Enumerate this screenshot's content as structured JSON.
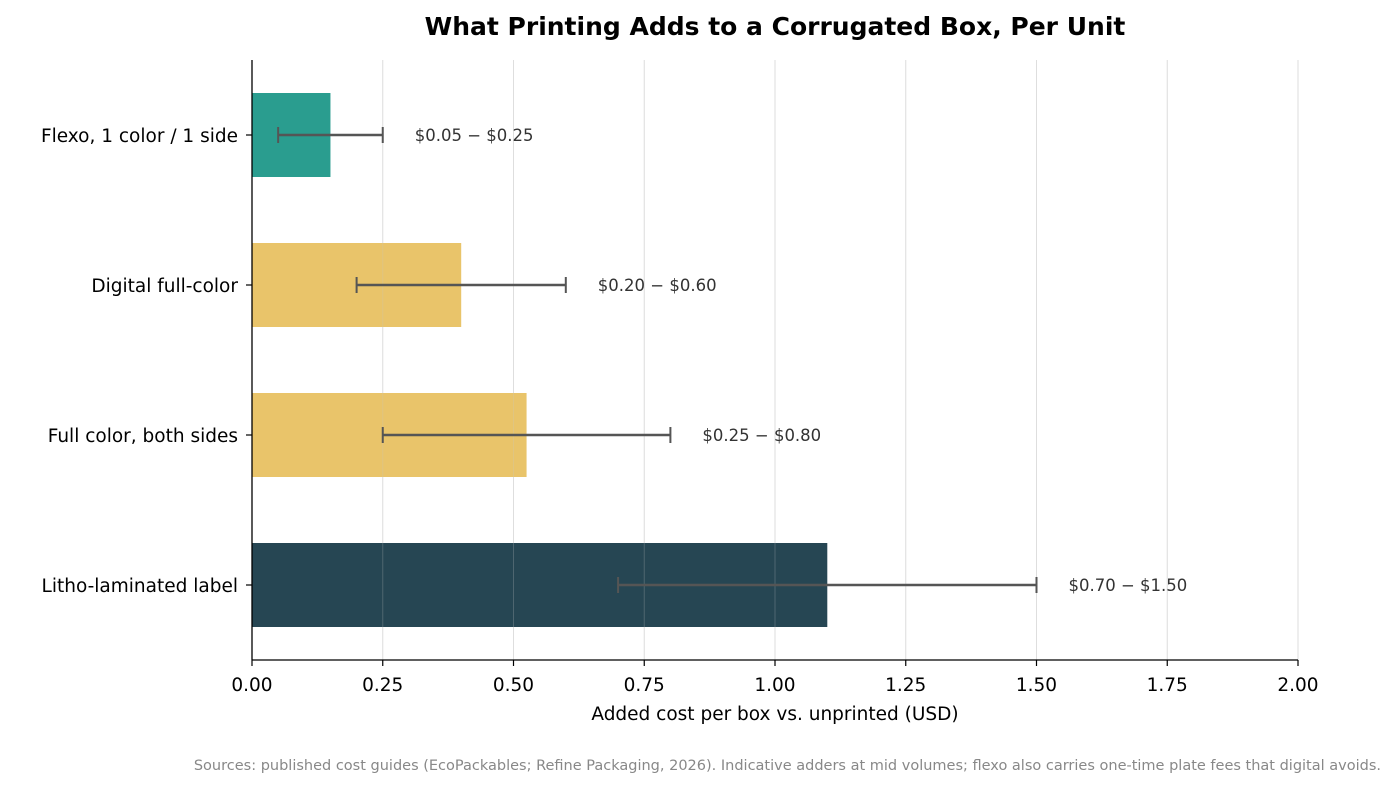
{
  "chart_data": {
    "type": "bar",
    "orientation": "horizontal",
    "title": "What Printing Adds to a Corrugated Box, Per Unit",
    "xlabel": "Added cost per box vs. unprinted (USD)",
    "ylabel": "",
    "xlim": [
      0,
      2.0
    ],
    "x_ticks": [
      "0.00",
      "0.25",
      "0.50",
      "0.75",
      "1.00",
      "1.25",
      "1.50",
      "1.75",
      "2.00"
    ],
    "grid": "vertical",
    "categories": [
      "Flexo, 1 color / 1 side",
      "Digital full-color",
      "Full color, both sides",
      "Litho-laminated label"
    ],
    "values": [
      0.15,
      0.4,
      0.525,
      1.1
    ],
    "range_low": [
      0.05,
      0.2,
      0.25,
      0.7
    ],
    "range_high": [
      0.25,
      0.6,
      0.8,
      1.5
    ],
    "range_labels": [
      "$0.05 − $0.25",
      "$0.20 − $0.60",
      "$0.25 − $0.80",
      "$0.70 − $1.50"
    ],
    "colors": [
      "#2a9d8f",
      "#e9c46a",
      "#e9c46a",
      "#264653"
    ],
    "error_bar_color": "#555555",
    "source": "Sources: published cost guides (EcoPackables; Refine Packaging, 2026). Indicative adders at mid volumes; flexo also carries one-time plate fees that digital avoids."
  }
}
